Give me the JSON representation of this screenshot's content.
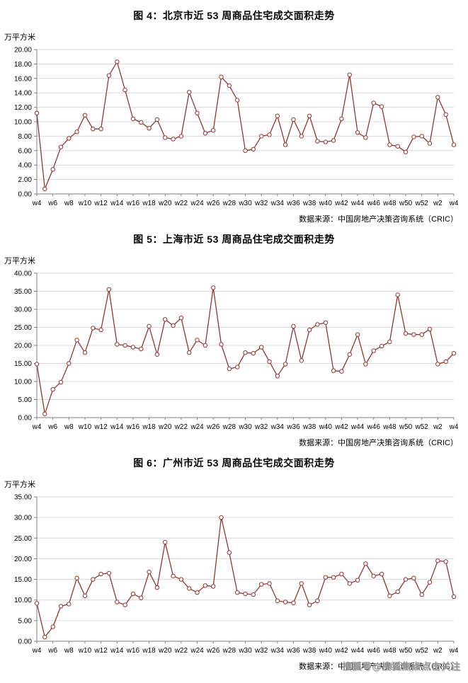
{
  "watermark": {
    "text": "搜狐号@搜狐焦点点击关注",
    "color": "#8f8f8f"
  },
  "chart_data": [
    {
      "type": "line",
      "title": "图 4：北京市近 53 周商品住宅成交面积走势",
      "ylabel": "万平方米",
      "source": "数据来源：中国房地产决策咨询系统（CRIC）",
      "ylim": [
        0,
        20
      ],
      "ytick_step": 2,
      "grid": true,
      "line_color": "#943634",
      "marker": "open-circle",
      "x_tick_labels": [
        "w4",
        "w6",
        "w8",
        "w10",
        "w12",
        "w14",
        "w16",
        "w18",
        "w20",
        "w22",
        "w24",
        "w26",
        "w28",
        "w30",
        "w32",
        "w34",
        "w36",
        "w38",
        "w40",
        "w42",
        "w44",
        "w46",
        "w48",
        "w50",
        "w52",
        "w2",
        "w4"
      ],
      "values": [
        11.2,
        0.7,
        3.4,
        6.5,
        7.7,
        8.6,
        10.9,
        9.0,
        9.0,
        16.4,
        18.3,
        14.4,
        10.4,
        9.9,
        9.1,
        10.3,
        7.8,
        7.6,
        8.0,
        14.1,
        11.2,
        8.4,
        8.8,
        16.2,
        15.0,
        13.0,
        6.0,
        6.2,
        8.0,
        8.2,
        10.8,
        6.8,
        10.3,
        8.0,
        10.8,
        7.3,
        7.2,
        7.4,
        10.4,
        16.5,
        8.5,
        7.8,
        12.6,
        12.1,
        6.8,
        6.6,
        5.8,
        7.9,
        8.0,
        7.0,
        13.4,
        11.0,
        6.8
      ]
    },
    {
      "type": "line",
      "title": "图 5：上海市近 53 周商品住宅成交面积走势",
      "ylabel": "万平方米",
      "source": "数据来源：中国房地产决策咨询系统（CRIC）",
      "ylim": [
        0,
        40
      ],
      "ytick_step": 5,
      "grid": true,
      "line_color": "#943634",
      "marker": "open-circle",
      "x_tick_labels": [
        "w4",
        "w6",
        "w8",
        "w10",
        "w12",
        "w14",
        "w16",
        "w18",
        "w20",
        "w22",
        "w24",
        "w26",
        "w28",
        "w30",
        "w32",
        "w34",
        "w36",
        "w38",
        "w40",
        "w42",
        "w44",
        "w46",
        "w48",
        "w50",
        "w52",
        "w2",
        "w4"
      ],
      "values": [
        14.8,
        1.0,
        7.8,
        9.8,
        15.0,
        21.5,
        18.0,
        24.8,
        24.3,
        35.5,
        20.3,
        20.0,
        19.5,
        19.0,
        25.3,
        17.5,
        27.2,
        25.5,
        27.6,
        18.0,
        21.5,
        20.0,
        36.0,
        20.3,
        13.5,
        14.0,
        18.0,
        17.8,
        19.5,
        15.5,
        11.5,
        14.8,
        25.3,
        15.8,
        24.3,
        25.8,
        26.3,
        13.0,
        12.8,
        17.5,
        23.0,
        14.8,
        18.5,
        19.8,
        21.0,
        34.0,
        23.3,
        23.0,
        23.0,
        24.5,
        14.8,
        15.5,
        17.8
      ]
    },
    {
      "type": "line",
      "title": "图 6：广州市近 53 周商品住宅成交面积走势",
      "ylabel": "万平方米",
      "source": "数据来源：中国房地产决策咨询系统（CRIC）",
      "ylim": [
        0,
        35
      ],
      "ytick_step": 5,
      "grid": true,
      "line_color": "#943634",
      "marker": "open-circle",
      "x_tick_labels": [
        "w4",
        "w6",
        "w8",
        "w10",
        "w12",
        "w14",
        "w16",
        "w18",
        "w20",
        "w22",
        "w24",
        "w26",
        "w28",
        "w30",
        "w32",
        "w34",
        "w36",
        "w38",
        "w40",
        "w42",
        "w44",
        "w46",
        "w48",
        "w50",
        "w52",
        "w2",
        "w4"
      ],
      "values": [
        9.2,
        1.0,
        3.5,
        8.5,
        9.0,
        15.3,
        11.0,
        15.0,
        16.3,
        16.5,
        9.5,
        8.8,
        11.5,
        10.5,
        16.8,
        13.0,
        24.0,
        15.8,
        15.0,
        12.8,
        11.8,
        13.5,
        13.3,
        30.0,
        21.5,
        11.8,
        11.5,
        11.3,
        13.8,
        14.0,
        9.8,
        9.5,
        9.3,
        14.0,
        8.8,
        9.8,
        15.5,
        15.5,
        16.3,
        14.0,
        14.8,
        18.8,
        15.8,
        16.3,
        11.0,
        12.0,
        15.0,
        15.3,
        11.3,
        14.3,
        19.5,
        19.3,
        10.8
      ]
    }
  ]
}
